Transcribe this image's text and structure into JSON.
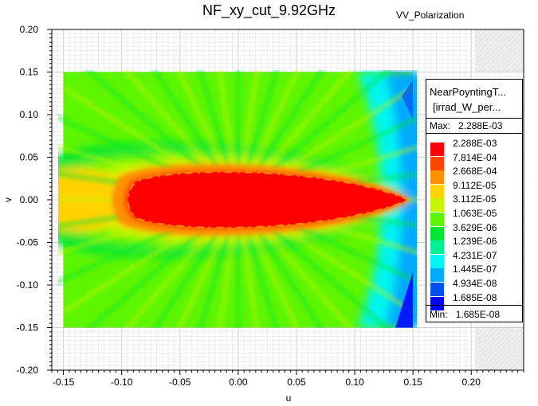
{
  "chart_data": {
    "type": "heatmap",
    "title": "NF_xy_cut_9.92GHz",
    "subtitle": "VV_Polarization",
    "xlabel": "u",
    "ylabel": "v",
    "xlim": [
      -0.16,
      0.245
    ],
    "ylim": [
      -0.2,
      0.2
    ],
    "x_ticks": [
      "-0.15",
      "-0.10",
      "-0.05",
      "0.00",
      "0.05",
      "0.10",
      "0.15",
      "0.20"
    ],
    "y_ticks": [
      "0.20",
      "0.15",
      "0.10",
      "0.05",
      "0.00",
      "-0.05",
      "-0.10",
      "-0.15",
      "-0.20"
    ],
    "data_extent": {
      "u": [
        -0.15,
        0.15
      ],
      "v": [
        -0.15,
        0.15
      ]
    },
    "grid": true,
    "legend": {
      "title_line1": "NearPoyntingT...",
      "title_line2": "[irrad_W_per...",
      "max_label": "Max:",
      "max_value": "2.288E-03",
      "min_label": "Min:",
      "min_value": "1.685E-08",
      "levels": [
        {
          "value": "2.288E-03",
          "color": "#ff0000"
        },
        {
          "value": "7.814E-04",
          "color": "#ff4500"
        },
        {
          "value": "2.668E-04",
          "color": "#ff9000"
        },
        {
          "value": "9.112E-05",
          "color": "#ffd200"
        },
        {
          "value": "3.112E-05",
          "color": "#c8f500"
        },
        {
          "value": "1.063E-05",
          "color": "#5ef500"
        },
        {
          "value": "3.629E-06",
          "color": "#00e632"
        },
        {
          "value": "1.239E-06",
          "color": "#00f096"
        },
        {
          "value": "4.231E-07",
          "color": "#00f5f0"
        },
        {
          "value": "1.445E-07",
          "color": "#00aaff"
        },
        {
          "value": "4.934E-08",
          "color": "#0050f0"
        },
        {
          "value": "1.685E-08",
          "color": "#0000ff"
        }
      ]
    }
  }
}
